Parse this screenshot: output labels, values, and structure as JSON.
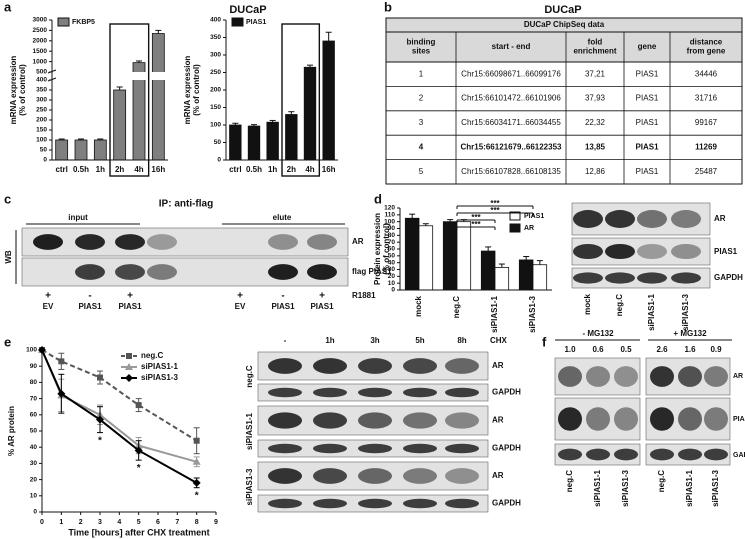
{
  "panel_labels": [
    "a",
    "b",
    "c",
    "d",
    "e",
    "f"
  ],
  "titles": [
    "DUCaP",
    "DUCaP"
  ],
  "chart_data": [
    {
      "type": "bar",
      "categories": [
        "ctrl",
        "0.5h",
        "1h",
        "2h",
        "4h",
        "16h"
      ],
      "series": [
        {
          "name": "FKBP5",
          "color": "#7f7f7f",
          "values": [
            100,
            100,
            100,
            350,
            950,
            2350
          ],
          "errors": [
            5,
            5,
            5,
            15,
            80,
            150
          ]
        }
      ],
      "ylim": [
        0,
        3000
      ],
      "ybreak": [
        400,
        500
      ],
      "yticks": [
        0,
        50,
        100,
        150,
        200,
        250,
        300,
        350,
        400,
        500,
        1000,
        1500,
        2000,
        2500,
        3000
      ],
      "ylabel": [
        "mRNA expression",
        "(% of control)"
      ]
    },
    {
      "type": "bar",
      "categories": [
        "ctrl",
        "0.5h",
        "1h",
        "2h",
        "4h",
        "16h"
      ],
      "series": [
        {
          "name": "PIAS1",
          "color": "#111111",
          "values": [
            100,
            97,
            108,
            130,
            265,
            340
          ],
          "errors": [
            5,
            4,
            5,
            8,
            6,
            25
          ]
        }
      ],
      "ylim": [
        0,
        400
      ],
      "yticks": [
        0,
        50,
        100,
        150,
        200,
        250,
        300,
        350,
        400
      ],
      "ylabel": [
        "mRNA expression",
        "(% of control)"
      ]
    },
    {
      "type": "bar",
      "categories": [
        "mock",
        "neg.C",
        "siPIAS1-1",
        "siPIAS1-3"
      ],
      "series": [
        {
          "name": "AR",
          "color": "#111111",
          "values": [
            105,
            100,
            57,
            44
          ],
          "errors": [
            6,
            3,
            6,
            5
          ]
        },
        {
          "name": "PIAS1",
          "color": "#ffffff",
          "values": [
            94,
            100,
            33,
            37
          ],
          "errors": [
            3,
            3,
            5,
            6
          ]
        }
      ],
      "ylim": [
        0,
        120
      ],
      "yticks": [
        0,
        10,
        20,
        30,
        40,
        50,
        60,
        70,
        80,
        90,
        100,
        110,
        120
      ],
      "ylabel": [
        "Protein expression",
        "(% of control)"
      ],
      "annotations": [
        "***",
        "***",
        "***",
        "***"
      ]
    },
    {
      "type": "line",
      "x": [
        0,
        1,
        3,
        5,
        8
      ],
      "series": [
        {
          "name": "neg.C",
          "color": "#555555",
          "dash": true,
          "marker": "square",
          "values": [
            100,
            93,
            83,
            66,
            44
          ],
          "errors": [
            0,
            5,
            4,
            4,
            8
          ]
        },
        {
          "name": "siPIAS1-1",
          "color": "#999999",
          "dash": false,
          "marker": "triangle",
          "values": [
            100,
            72,
            60,
            41,
            31
          ],
          "errors": [
            0,
            10,
            6,
            5,
            3
          ]
        },
        {
          "name": "siPIAS1-3",
          "color": "#000000",
          "dash": false,
          "marker": "diamond",
          "values": [
            100,
            73,
            57,
            38,
            18
          ],
          "errors": [
            0,
            12,
            8,
            6,
            3
          ]
        }
      ],
      "xlim": [
        0,
        9
      ],
      "xticks": [
        0,
        1,
        2,
        3,
        4,
        5,
        6,
        7,
        8,
        9
      ],
      "ylim": [
        0,
        100
      ],
      "yticks": [
        0,
        10,
        20,
        30,
        40,
        50,
        60,
        70,
        80,
        90,
        100
      ],
      "xlabel": "Time [hours] after CHX treatment",
      "ylabel": [
        "% AR protein"
      ],
      "annotations": [
        {
          "text": "*",
          "x": 3
        },
        {
          "text": "*",
          "x": 5
        },
        {
          "text": "*",
          "x": 8
        }
      ]
    }
  ],
  "table": {
    "title": "DUCaP ChipSeq data",
    "header": [
      [
        "binding",
        "sites"
      ],
      [
        "start - end"
      ],
      [
        "fold",
        "enrichment"
      ],
      [
        "gene"
      ],
      [
        "distance",
        "from gene"
      ]
    ],
    "rows": [
      [
        "1",
        "Chr15:66098671..66099176",
        "37,21",
        "PIAS1",
        "34446"
      ],
      [
        "2",
        "Chr15:66101472..66101906",
        "37,93",
        "PIAS1",
        "31716"
      ],
      [
        "3",
        "Chr15:66034171..66034455",
        "22,32",
        "PIAS1",
        "99167"
      ],
      [
        "4",
        "Chr15:66121679..66122353",
        "13,85",
        "PIAS1",
        "11269"
      ],
      [
        "5",
        "Chr15:66107828..66108135",
        "12,86",
        "PIAS1",
        "25487"
      ]
    ]
  },
  "blots": {
    "c": {
      "title": "IP: anti-flag",
      "groups": [
        "input",
        "elute"
      ],
      "side": "WB",
      "rows": [
        "AR",
        "flag PIAS1"
      ],
      "treatment": "R1881",
      "signs": [
        "+",
        "-",
        "+",
        "+",
        "-",
        "+"
      ],
      "lanes": [
        "EV",
        "PIAS1",
        "PIAS1",
        "EV",
        "PIAS1",
        "PIAS1"
      ]
    },
    "d": {
      "rows": [
        "AR",
        "PIAS1",
        "GAPDH"
      ],
      "lanes": [
        "mock",
        "neg.C",
        "siPIAS1-1",
        "siPIAS1-3"
      ]
    },
    "e": {
      "lanes": [
        "-",
        "1h",
        "3h",
        "5h",
        "8h"
      ],
      "treatment": "CHX",
      "groups": [
        {
          "name": "neg.C",
          "rows": [
            "AR",
            "GAPDH"
          ]
        },
        {
          "name": "siPIAS1-1",
          "rows": [
            "AR",
            "GAPDH"
          ]
        },
        {
          "name": "siPIAS1-3",
          "rows": [
            "AR",
            "GAPDH"
          ]
        }
      ]
    },
    "f": {
      "groups": [
        "- MG132",
        "+ MG132"
      ],
      "quant": [
        "1.0",
        "0.6",
        "0.5",
        "2.6",
        "1.6",
        "0.9"
      ],
      "rows": [
        "AR",
        "PIAS1",
        "GAPDH"
      ],
      "lanes": [
        "neg.C",
        "siPIAS1-1",
        "siPIAS1-3",
        "neg.C",
        "siPIAS1-1",
        "siPIAS1-3"
      ]
    }
  }
}
